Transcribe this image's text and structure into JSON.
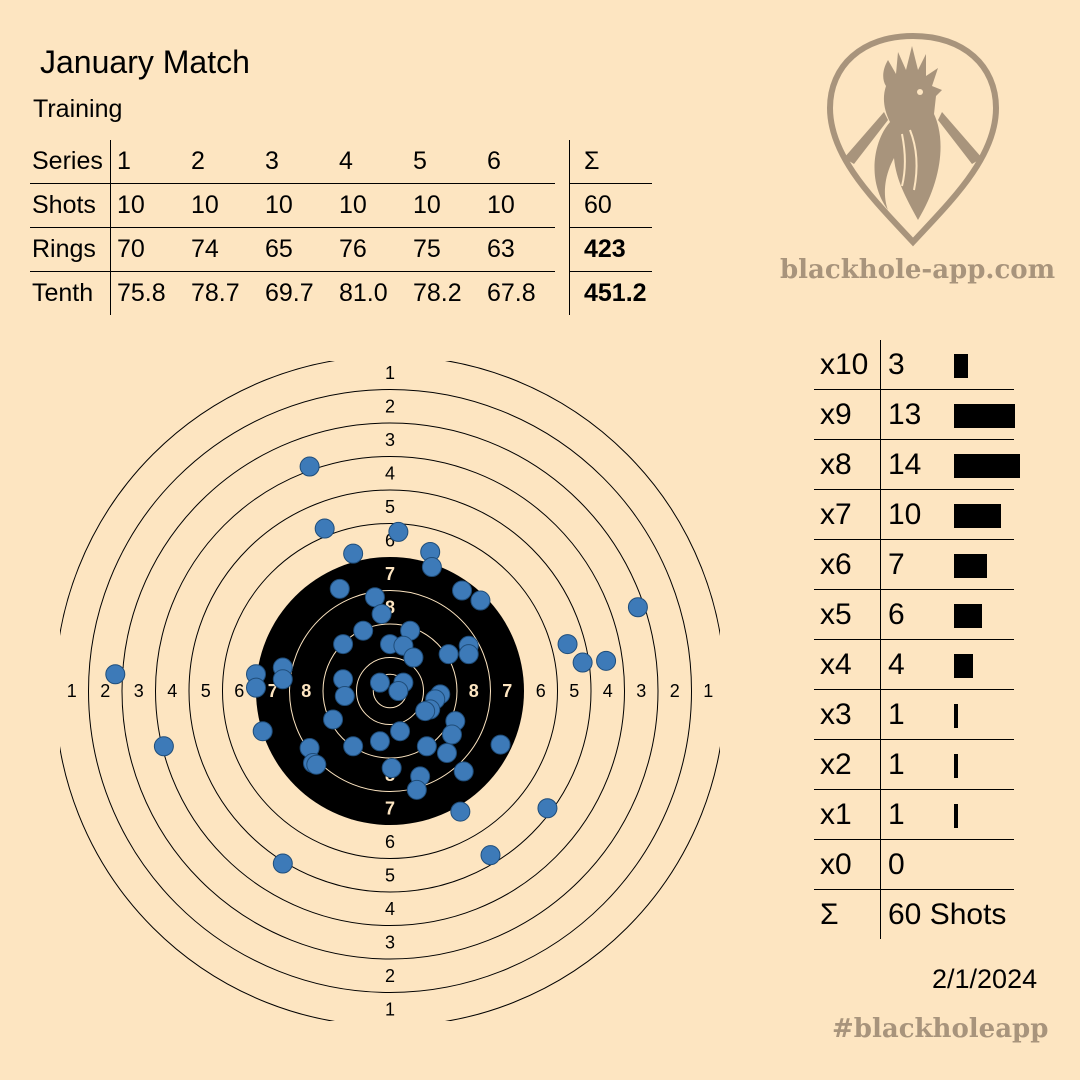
{
  "header": {
    "title": "January Match",
    "subtitle": "Training"
  },
  "stats": {
    "header_row": {
      "label": "Series",
      "values": [
        "1",
        "2",
        "3",
        "4",
        "5",
        "6"
      ],
      "sum": "Σ"
    },
    "rows": [
      {
        "label": "Shots",
        "values": [
          "10",
          "10",
          "10",
          "10",
          "10",
          "10"
        ],
        "sum": "60",
        "sum_bold": false
      },
      {
        "label": "Rings",
        "values": [
          "70",
          "74",
          "65",
          "76",
          "75",
          "63"
        ],
        "sum": "423",
        "sum_bold": true
      },
      {
        "label": "Tenth",
        "values": [
          "75.8",
          "78.7",
          "69.7",
          "81.0",
          "78.2",
          "67.8"
        ],
        "sum": "451.2",
        "sum_bold": true
      }
    ]
  },
  "brand": {
    "logo_icon": "rooster-shield-icon",
    "site": "blackhole-app.com",
    "hashtag": "#blackholeapp",
    "color": "#a8947c"
  },
  "distribution": {
    "rows": [
      {
        "label": "x10",
        "count": "3",
        "value": 3
      },
      {
        "label": "x9",
        "count": "13",
        "value": 13
      },
      {
        "label": "x8",
        "count": "14",
        "value": 14
      },
      {
        "label": "x7",
        "count": "10",
        "value": 10
      },
      {
        "label": "x6",
        "count": "7",
        "value": 7
      },
      {
        "label": "x5",
        "count": "6",
        "value": 6
      },
      {
        "label": "x4",
        "count": "4",
        "value": 4
      },
      {
        "label": "x3",
        "count": "1",
        "value": 1
      },
      {
        "label": "x2",
        "count": "1",
        "value": 1
      },
      {
        "label": "x1",
        "count": "1",
        "value": 1
      },
      {
        "label": "x0",
        "count": "0",
        "value": 0
      }
    ],
    "total_label": "Σ",
    "total": "60 Shots"
  },
  "date": "2/1/2024",
  "target": {
    "ring_numbers": [
      "1",
      "2",
      "3",
      "4",
      "5",
      "6",
      "7",
      "8"
    ],
    "shot_color": "#3d7ab8",
    "shots": [
      [
        -2.4,
        6.7
      ],
      [
        -1.95,
        4.85
      ],
      [
        0.25,
        4.75
      ],
      [
        -1.1,
        4.1
      ],
      [
        1.2,
        4.15
      ],
      [
        1.25,
        3.7
      ],
      [
        -1.5,
        3.05
      ],
      [
        -0.45,
        2.8
      ],
      [
        2.15,
        3.0
      ],
      [
        2.7,
        2.7
      ],
      [
        -0.25,
        2.3
      ],
      [
        7.4,
        2.5
      ],
      [
        -0.8,
        1.8
      ],
      [
        0.6,
        1.8
      ],
      [
        -1.4,
        1.4
      ],
      [
        0.0,
        1.4
      ],
      [
        0.4,
        1.35
      ],
      [
        0.7,
        1.0
      ],
      [
        1.75,
        1.1
      ],
      [
        2.35,
        1.35
      ],
      [
        2.35,
        1.1
      ],
      [
        5.3,
        1.4
      ],
      [
        5.75,
        0.85
      ],
      [
        6.45,
        0.9
      ],
      [
        -8.2,
        0.5
      ],
      [
        -3.2,
        0.7
      ],
      [
        -3.2,
        0.35
      ],
      [
        -4.0,
        0.5
      ],
      [
        -4.0,
        0.1
      ],
      [
        -1.4,
        0.35
      ],
      [
        -0.3,
        0.25
      ],
      [
        0.4,
        0.25
      ],
      [
        0.25,
        0.0
      ],
      [
        -1.35,
        -0.15
      ],
      [
        1.5,
        -0.1
      ],
      [
        1.35,
        -0.25
      ],
      [
        1.2,
        -0.55
      ],
      [
        1.05,
        -0.6
      ],
      [
        -1.7,
        -0.85
      ],
      [
        1.95,
        -0.9
      ],
      [
        -3.8,
        -1.2
      ],
      [
        0.3,
        -1.2
      ],
      [
        1.85,
        -1.3
      ],
      [
        -0.3,
        -1.5
      ],
      [
        -1.1,
        -1.65
      ],
      [
        1.1,
        -1.65
      ],
      [
        1.7,
        -1.85
      ],
      [
        3.3,
        -1.6
      ],
      [
        -6.75,
        -1.65
      ],
      [
        -2.4,
        -1.7
      ],
      [
        -2.3,
        -2.15
      ],
      [
        0.05,
        -2.3
      ],
      [
        0.9,
        -2.55
      ],
      [
        2.2,
        -2.4
      ],
      [
        0.8,
        -2.95
      ],
      [
        2.1,
        -3.6
      ],
      [
        4.7,
        -3.5
      ],
      [
        3.0,
        -4.9
      ],
      [
        -3.2,
        -5.15
      ],
      [
        -2.2,
        -2.2
      ]
    ]
  }
}
